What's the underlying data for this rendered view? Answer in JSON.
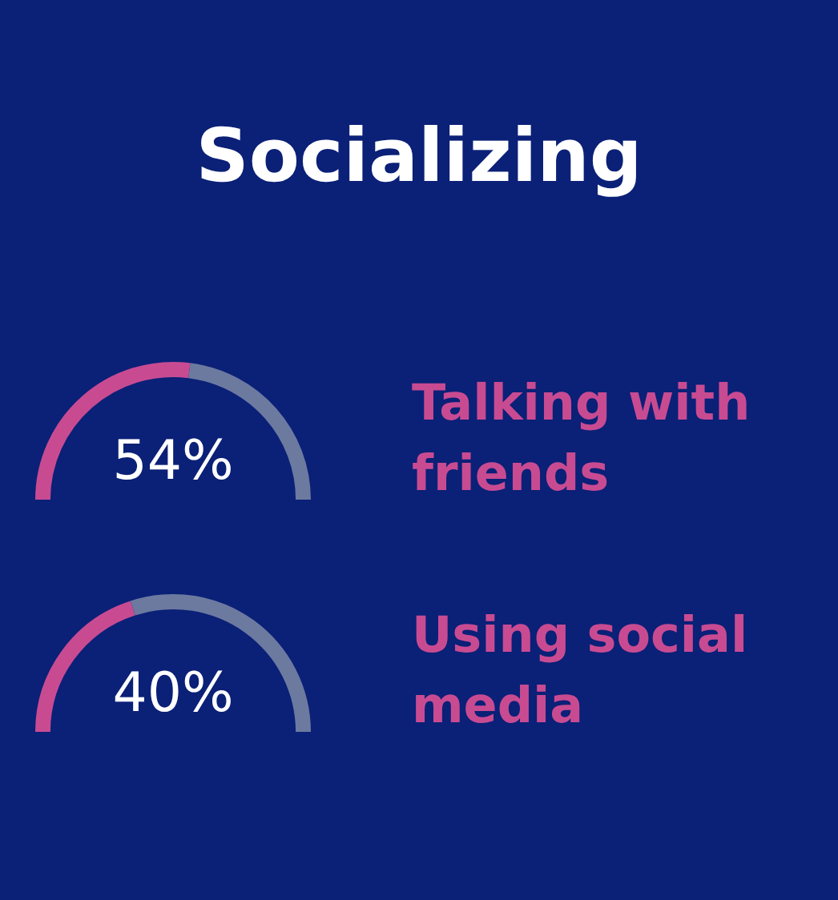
{
  "chart_data": [
    {
      "type": "other",
      "title": "Socializing"
    },
    {
      "type": "donut",
      "title": "Talking with friends",
      "categories": [
        null,
        null
      ],
      "values": [
        54,
        46
      ],
      "colors": [
        "#c84b92",
        "#6c7aa0"
      ],
      "value_labels": [
        "54%",
        null
      ]
    },
    {
      "type": "donut",
      "title": "Using social media",
      "categories": [
        null,
        null
      ],
      "values": [
        40,
        60
      ],
      "colors": [
        "#c84b92",
        "#6c7aa0"
      ],
      "value_labels": [
        "40%",
        null
      ]
    }
  ]
}
